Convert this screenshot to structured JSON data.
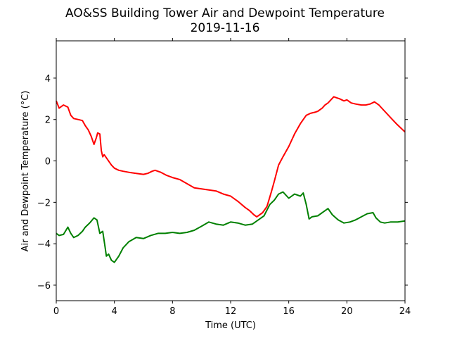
{
  "chart_data": {
    "type": "line",
    "title": "AO&SS Building Tower Air and Dewpoint Temperature",
    "subtitle": "2019-11-16",
    "xlabel": "Time (UTC)",
    "ylabel": "Air and Dewpoint Temperature (°C)",
    "xlim": [
      0,
      24
    ],
    "ylim": [
      -6.75,
      5.8
    ],
    "xticks": [
      0,
      4,
      8,
      12,
      16,
      20,
      24
    ],
    "yticks": [
      -6,
      -4,
      -2,
      0,
      2,
      4
    ],
    "grid": false,
    "legend": "none",
    "series": [
      {
        "color": "#ff0000",
        "x": [
          0,
          0.2,
          0.5,
          0.8,
          1.0,
          1.2,
          1.5,
          1.8,
          2.0,
          2.2,
          2.4,
          2.6,
          2.75,
          2.85,
          3.0,
          3.1,
          3.2,
          3.3,
          3.5,
          3.8,
          4.0,
          4.3,
          4.6,
          5.0,
          5.5,
          6.0,
          6.3,
          6.6,
          6.8,
          7.2,
          7.6,
          8.0,
          8.5,
          9.0,
          9.5,
          10.0,
          10.5,
          11.0,
          11.5,
          12.0,
          12.5,
          13.0,
          13.3,
          13.6,
          13.8,
          14.0,
          14.2,
          14.5,
          14.8,
          15.0,
          15.3,
          15.6,
          16.0,
          16.4,
          16.8,
          17.2,
          17.5,
          17.8,
          18.0,
          18.3,
          18.5,
          18.7,
          18.9,
          19.1,
          19.3,
          19.5,
          19.8,
          20.0,
          20.3,
          20.6,
          21.0,
          21.3,
          21.6,
          21.9,
          22.2,
          22.6,
          23.0,
          23.4,
          23.7,
          24.0
        ],
        "y": [
          2.9,
          2.55,
          2.7,
          2.6,
          2.2,
          2.05,
          2.0,
          1.95,
          1.7,
          1.5,
          1.2,
          0.8,
          1.1,
          1.35,
          1.3,
          0.5,
          0.2,
          0.3,
          0.1,
          -0.2,
          -0.35,
          -0.45,
          -0.5,
          -0.55,
          -0.6,
          -0.65,
          -0.6,
          -0.5,
          -0.45,
          -0.55,
          -0.7,
          -0.8,
          -0.9,
          -1.1,
          -1.3,
          -1.35,
          -1.4,
          -1.45,
          -1.6,
          -1.7,
          -1.95,
          -2.25,
          -2.4,
          -2.6,
          -2.7,
          -2.6,
          -2.5,
          -2.2,
          -1.5,
          -1.0,
          -0.2,
          0.2,
          0.7,
          1.3,
          1.8,
          2.2,
          2.3,
          2.35,
          2.4,
          2.55,
          2.7,
          2.8,
          2.95,
          3.1,
          3.05,
          3.0,
          2.9,
          2.95,
          2.8,
          2.75,
          2.7,
          2.7,
          2.75,
          2.85,
          2.7,
          2.4,
          2.1,
          1.8,
          1.6,
          1.4
        ]
      },
      {
        "color": "#008000",
        "x": [
          0,
          0.2,
          0.5,
          0.8,
          1.0,
          1.2,
          1.5,
          1.8,
          2.0,
          2.3,
          2.6,
          2.8,
          3.0,
          3.2,
          3.35,
          3.45,
          3.6,
          3.8,
          4.0,
          4.3,
          4.6,
          5.0,
          5.5,
          6.0,
          6.5,
          7.0,
          7.5,
          8.0,
          8.5,
          9.0,
          9.5,
          10.0,
          10.5,
          11.0,
          11.5,
          12.0,
          12.5,
          13.0,
          13.5,
          14.0,
          14.3,
          14.7,
          15.0,
          15.3,
          15.6,
          16.0,
          16.4,
          16.8,
          17.0,
          17.2,
          17.4,
          17.6,
          18.0,
          18.4,
          18.7,
          19.0,
          19.4,
          19.8,
          20.2,
          20.6,
          21.0,
          21.4,
          21.8,
          22.0,
          22.3,
          22.6,
          23.0,
          23.5,
          24.0
        ],
        "y": [
          -3.5,
          -3.6,
          -3.55,
          -3.2,
          -3.5,
          -3.7,
          -3.6,
          -3.4,
          -3.2,
          -3.0,
          -2.75,
          -2.85,
          -3.5,
          -3.4,
          -4.1,
          -4.6,
          -4.5,
          -4.8,
          -4.9,
          -4.6,
          -4.2,
          -3.9,
          -3.7,
          -3.75,
          -3.6,
          -3.5,
          -3.5,
          -3.45,
          -3.5,
          -3.45,
          -3.35,
          -3.15,
          -2.95,
          -3.05,
          -3.1,
          -2.95,
          -3.0,
          -3.1,
          -3.05,
          -2.8,
          -2.65,
          -2.1,
          -1.9,
          -1.6,
          -1.5,
          -1.8,
          -1.6,
          -1.7,
          -1.55,
          -2.1,
          -2.8,
          -2.7,
          -2.65,
          -2.45,
          -2.3,
          -2.6,
          -2.85,
          -3.0,
          -2.95,
          -2.85,
          -2.7,
          -2.55,
          -2.5,
          -2.75,
          -2.95,
          -3.0,
          -2.95,
          -2.95,
          -2.9
        ]
      }
    ]
  }
}
